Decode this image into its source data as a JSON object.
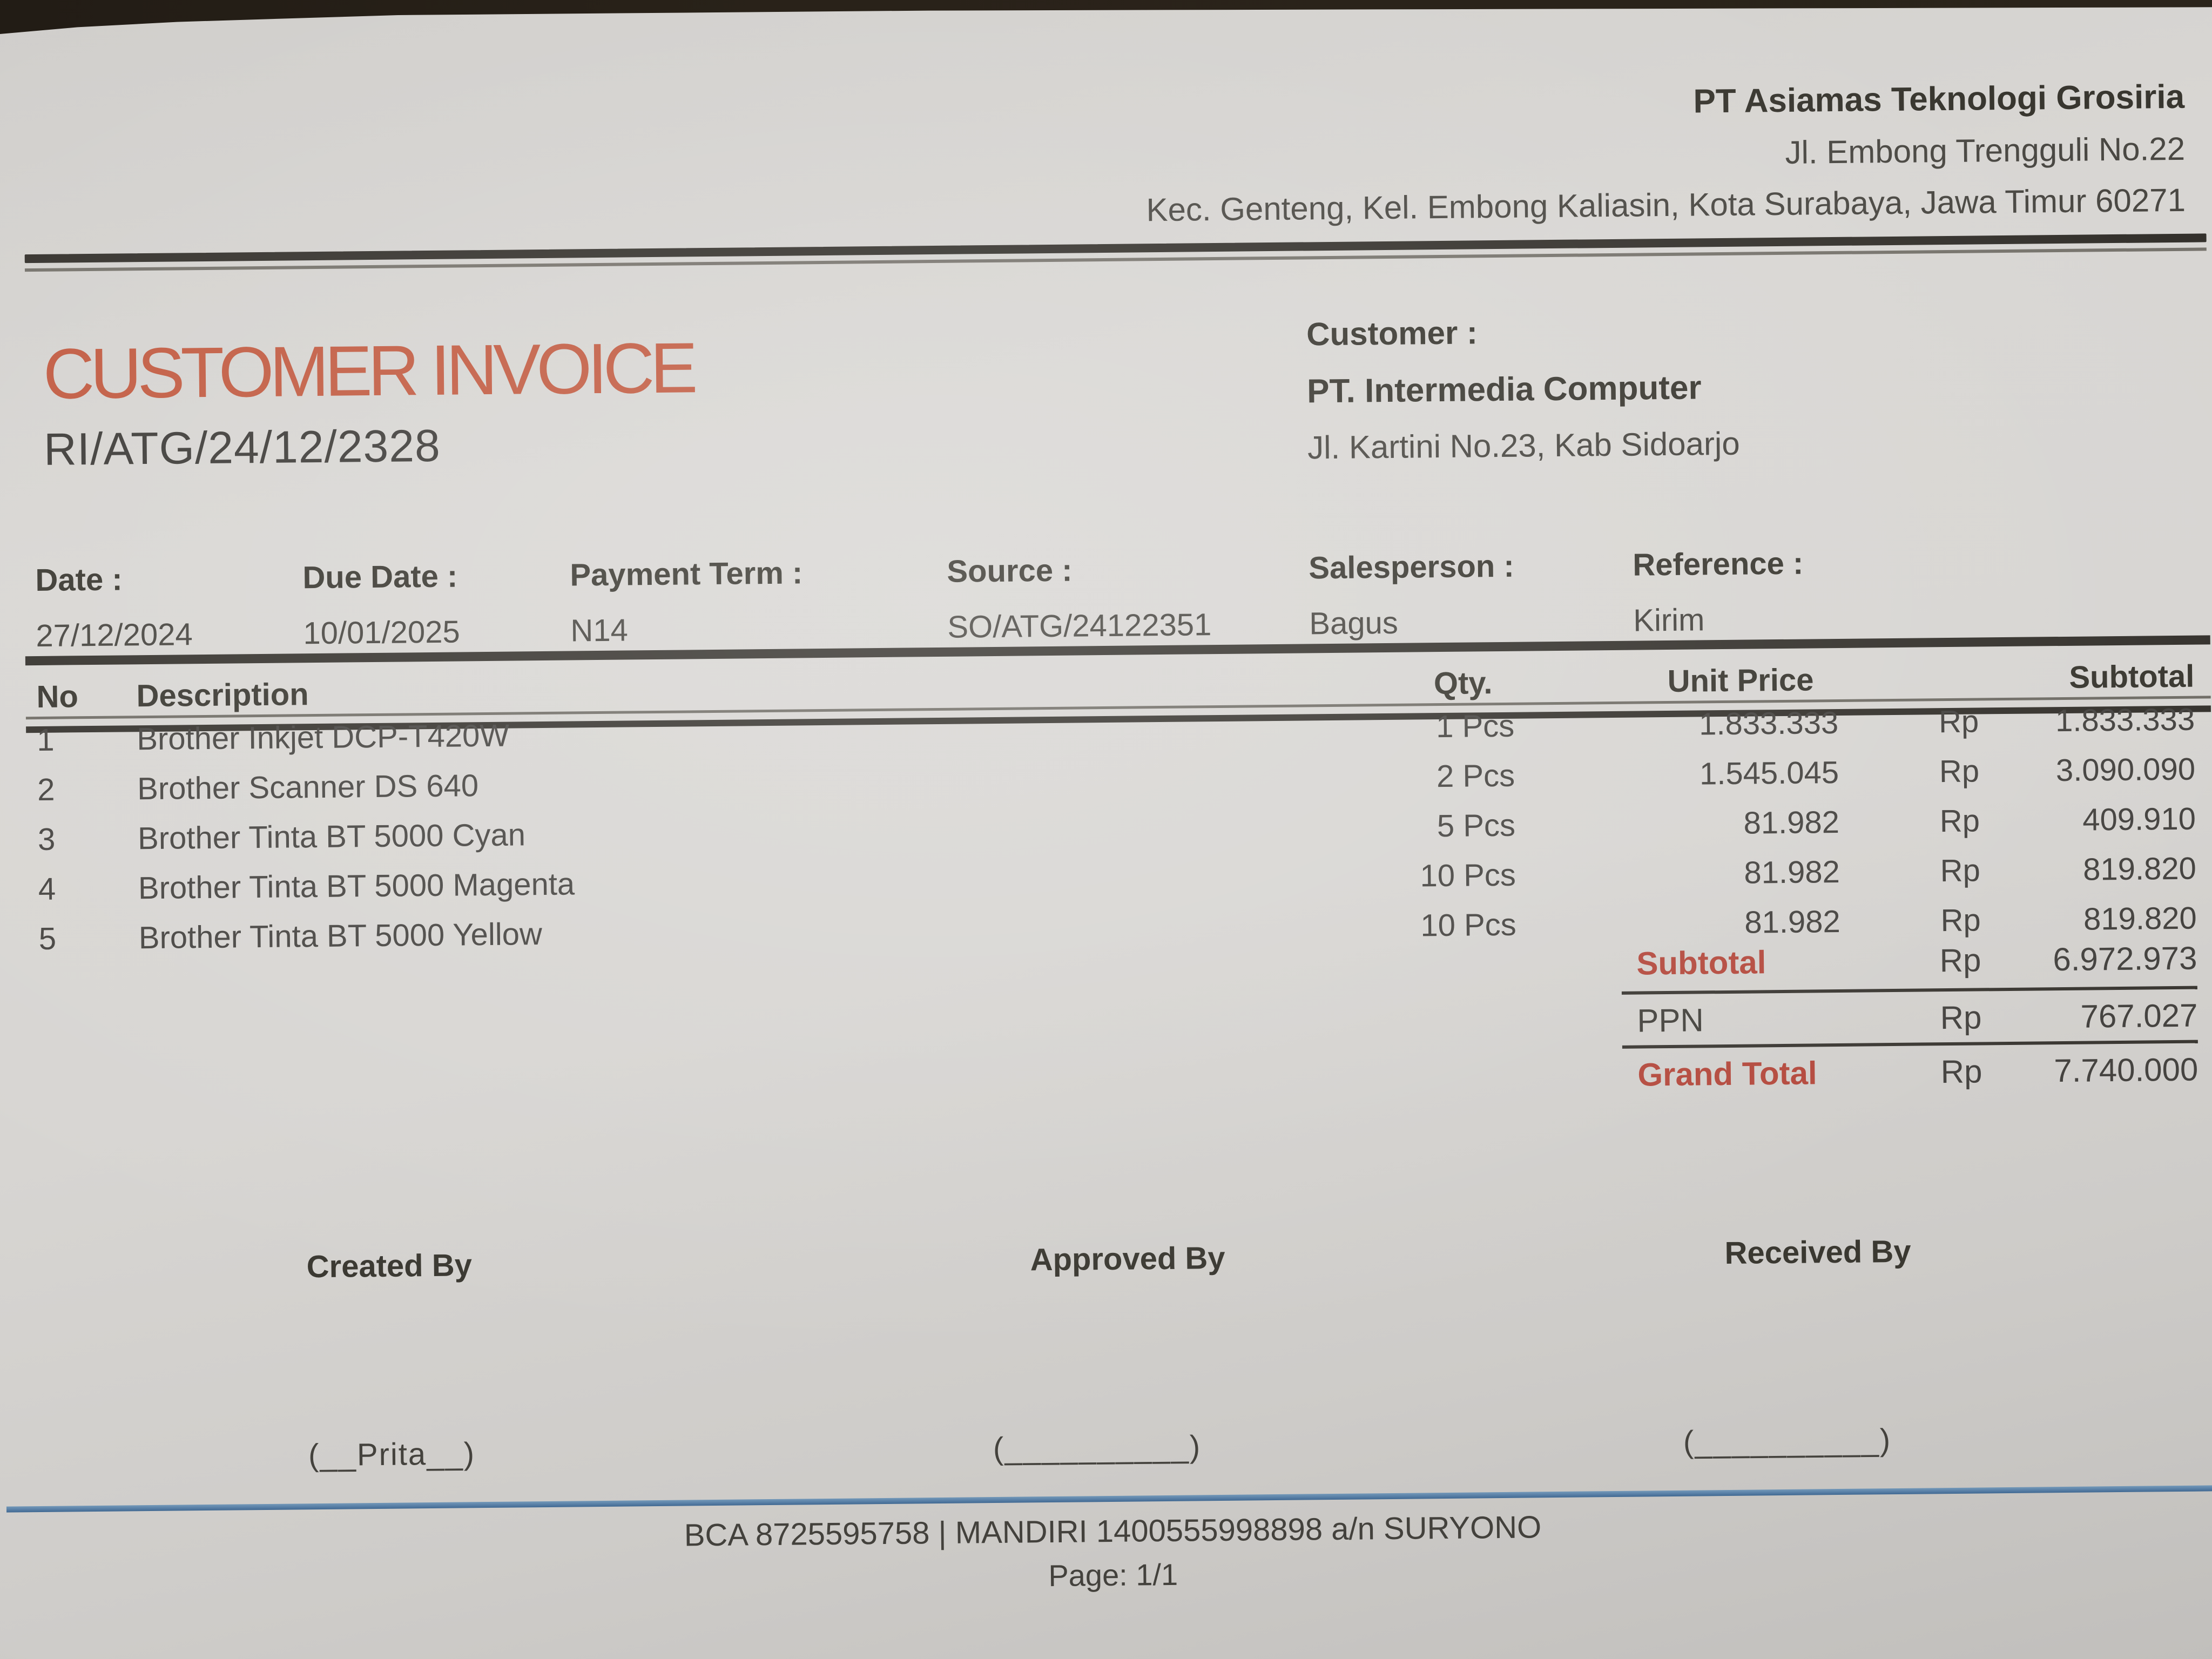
{
  "company": {
    "name": "PT Asiamas Teknologi Grosiria",
    "address1": "Jl. Embong Trengguli No.22",
    "address2": "Kec. Genteng, Kel. Embong Kaliasin, Kota Surabaya, Jawa Timur 60271"
  },
  "invoice": {
    "title": "CUSTOMER INVOICE",
    "number": "RI/ATG/24/12/2328"
  },
  "customer": {
    "label": "Customer :",
    "name": "PT. Intermedia Computer",
    "address": "Jl. Kartini No.23, Kab Sidoarjo"
  },
  "meta": {
    "fields": [
      {
        "label": "Date :",
        "value": "27/12/2024"
      },
      {
        "label": "Due Date :",
        "value": "10/01/2025"
      },
      {
        "label": "Payment Term :",
        "value": "N14"
      },
      {
        "label": "Source :",
        "value": "SO/ATG/24122351"
      },
      {
        "label": "Salesperson :",
        "value": "Bagus"
      },
      {
        "label": "Reference :",
        "value": "Kirim"
      }
    ]
  },
  "items": {
    "headers": {
      "no": "No",
      "description": "Description",
      "qty": "Qty.",
      "unit_price": "Unit Price",
      "subtotal": "Subtotal"
    },
    "rows": [
      {
        "no": "1",
        "description": "Brother Inkjet DCP-T420W",
        "qty": "1 Pcs",
        "unit_price": "1.833.333",
        "currency": "Rp",
        "subtotal": "1.833.333"
      },
      {
        "no": "2",
        "description": "Brother Scanner DS 640",
        "qty": "2 Pcs",
        "unit_price": "1.545.045",
        "currency": "Rp",
        "subtotal": "3.090.090"
      },
      {
        "no": "3",
        "description": "Brother Tinta BT 5000 Cyan",
        "qty": "5 Pcs",
        "unit_price": "81.982",
        "currency": "Rp",
        "subtotal": "409.910"
      },
      {
        "no": "4",
        "description": "Brother Tinta BT 5000 Magenta",
        "qty": "10 Pcs",
        "unit_price": "81.982",
        "currency": "Rp",
        "subtotal": "819.820"
      },
      {
        "no": "5",
        "description": "Brother Tinta BT 5000 Yellow",
        "qty": "10 Pcs",
        "unit_price": "81.982",
        "currency": "Rp",
        "subtotal": "819.820"
      }
    ]
  },
  "totals": {
    "rows": [
      {
        "label": "Subtotal",
        "currency": "Rp",
        "amount": "6.972.973"
      },
      {
        "label": "PPN",
        "currency": "Rp",
        "amount": "767.027"
      },
      {
        "label": "Grand Total",
        "currency": "Rp",
        "amount": "7.740.000"
      }
    ]
  },
  "signatures": {
    "blocks": [
      {
        "label": "Created By",
        "line": "(__Prita__)"
      },
      {
        "label": "Approved By",
        "line": "(__________)"
      },
      {
        "label": "Received By",
        "line": "(__________)"
      }
    ]
  },
  "footer": {
    "bank_line": "BCA 8725595758 | MANDIRI 1400555998898 a/n SURYONO",
    "page": "Page: 1/1"
  },
  "colors": {
    "invoice_title_accent": "#c15a40",
    "totals_accent": "#b44a3e",
    "divider_blue": "#587fa6",
    "ink": "#3f3d3a"
  }
}
